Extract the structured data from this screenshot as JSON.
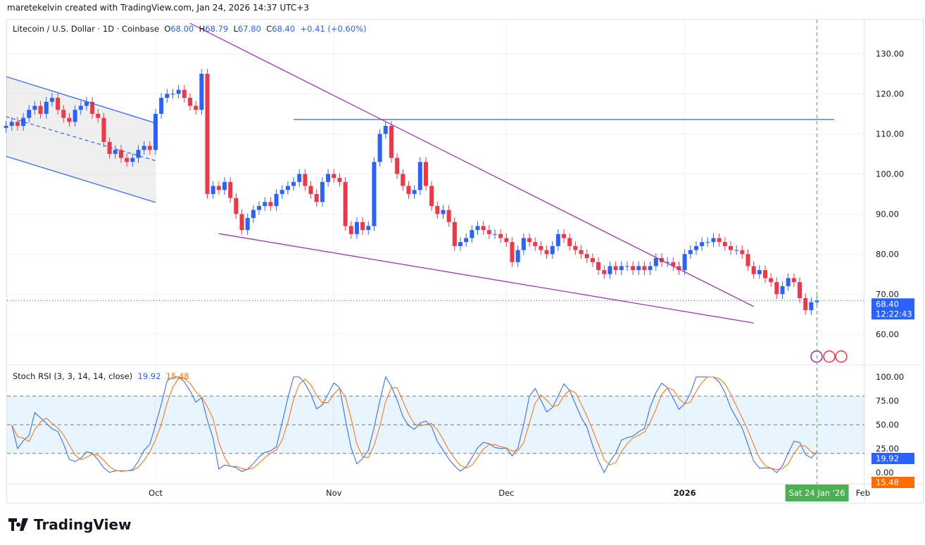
{
  "credit": "maretekelvin created with TradingView.com, Jan 24, 2026 14:37 UTC+3",
  "legend": {
    "symbol": "Litecoin / U.S. Dollar · 1D · Coinbase",
    "o_label": "O",
    "o": "68.00",
    "h_label": "H",
    "h": "68.79",
    "l_label": "L",
    "l": "67.80",
    "c_label": "C",
    "c": "68.40",
    "change": "+0.41 (+0.60%)"
  },
  "stoch": {
    "label": "Stoch RSI (3, 3, 14, 14, close)",
    "k": "19.92",
    "d": "15.48",
    "params": [
      3,
      3,
      14,
      14
    ],
    "upper_band": 80,
    "lower_band": 20,
    "mid": 50
  },
  "last_price": {
    "value": "68.40",
    "countdown": "12:22:43"
  },
  "crosshair_date": "Sat 24 Jan '26",
  "logo": "TradingView",
  "colors": {
    "up": "#2962ff",
    "down": "#f23645",
    "k_line": "#2962ff",
    "d_line": "#ff6d00",
    "purple": "#9c27b0",
    "crosshair": "#4caf50"
  },
  "chart_data": {
    "type": "candlestick",
    "start_date": "2025-09-05",
    "closes": [
      112,
      113,
      112,
      114,
      116,
      117,
      115,
      118,
      119,
      116,
      114,
      113,
      116,
      117,
      118,
      115,
      114,
      108,
      105,
      106,
      104,
      103,
      104,
      106,
      107,
      106,
      115,
      119,
      120,
      120,
      121,
      119,
      117,
      116,
      125,
      95,
      97,
      96,
      98,
      94,
      90,
      86,
      89,
      91,
      92,
      93,
      92,
      95,
      96,
      97,
      98,
      100,
      97,
      95,
      93,
      98,
      100,
      99,
      98,
      87,
      85,
      88,
      86,
      87,
      103,
      110,
      112,
      104,
      100,
      97,
      95,
      96,
      103,
      97,
      92,
      90,
      91,
      88,
      82,
      83,
      84,
      86,
      87,
      86,
      85,
      85,
      84,
      83,
      78,
      81,
      84,
      83,
      82,
      81,
      80,
      82,
      85,
      84,
      82,
      81,
      80,
      79,
      78,
      76,
      75,
      77,
      76,
      77,
      77,
      76,
      77,
      76,
      77,
      79,
      78,
      78,
      77,
      76,
      80,
      81,
      82,
      83,
      83,
      84,
      83,
      82,
      81,
      81,
      80,
      77,
      75,
      76,
      74,
      73,
      70,
      72,
      74,
      73,
      69,
      66,
      68,
      68.4
    ],
    "price_ticks": [
      60,
      70,
      80,
      90,
      100,
      110,
      120,
      130
    ],
    "price_range": [
      52.5,
      138.5
    ],
    "stoch_ticks": [
      "0.00",
      "25.00",
      "50.00",
      "75.00",
      "100.00"
    ],
    "time_ticks": [
      {
        "label": "Oct",
        "date": "2025-10-01"
      },
      {
        "label": "Nov",
        "date": "2025-11-01"
      },
      {
        "label": "Dec",
        "date": "2025-12-01"
      },
      {
        "label": "2026",
        "date": "2026-01-01",
        "bold": true
      },
      {
        "label": "Feb",
        "date": "2026-02-01"
      }
    ],
    "drawings": [
      {
        "kind": "channel-upper",
        "color": "#2962ff",
        "p1": [
          "2025-09-05",
          124.3
        ],
        "p2": [
          "2025-10-01",
          112.7
        ]
      },
      {
        "kind": "channel-mid",
        "color": "#2962ff",
        "dashed": true,
        "p1": [
          "2025-09-05",
          114.3
        ],
        "p2": [
          "2025-10-01",
          103.3
        ]
      },
      {
        "kind": "channel-lower",
        "color": "#2962ff",
        "p1": [
          "2025-09-05",
          104.4
        ],
        "p2": [
          "2025-10-01",
          92.9
        ]
      },
      {
        "kind": "horizontal",
        "color": "#2962ff",
        "p1": [
          "2025-10-25",
          113.6
        ],
        "p2": [
          "2026-01-27",
          113.6
        ]
      },
      {
        "kind": "trend-upper",
        "color": "#9c27b0",
        "p1": [
          "2025-10-07",
          137.6
        ],
        "p2": [
          "2026-01-13",
          66.9
        ]
      },
      {
        "kind": "trend-lower",
        "color": "#9c27b0",
        "p1": [
          "2025-10-12",
          85.1
        ],
        "p2": [
          "2026-01-13",
          62.8
        ]
      }
    ]
  }
}
